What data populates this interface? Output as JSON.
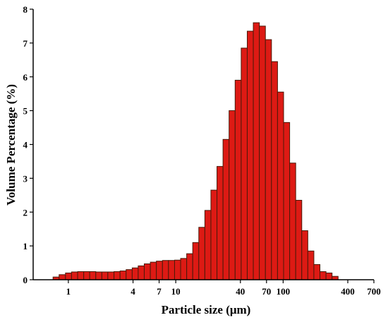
{
  "chart_data": {
    "type": "bar",
    "xlabel": "Particle size (μm)",
    "ylabel": "Volume Percentage (%)",
    "x_scale": "log",
    "xlim": [
      0.47,
      700
    ],
    "ylim": [
      0,
      8
    ],
    "x_ticks": [
      {
        "value": 1,
        "label": "1"
      },
      {
        "value": 4,
        "label": "4"
      },
      {
        "value": 7,
        "label": "7"
      },
      {
        "value": 10,
        "label": "10"
      },
      {
        "value": 40,
        "label": "40"
      },
      {
        "value": 70,
        "label": "70"
      },
      {
        "value": 100,
        "label": "100"
      },
      {
        "value": 400,
        "label": "400"
      },
      {
        "value": 700,
        "label": "700"
      }
    ],
    "y_ticks": [
      {
        "value": 0,
        "label": "0"
      },
      {
        "value": 1,
        "label": "1"
      },
      {
        "value": 2,
        "label": "2"
      },
      {
        "value": 3,
        "label": "3"
      },
      {
        "value": 4,
        "label": "4"
      },
      {
        "value": 5,
        "label": "5"
      },
      {
        "value": 6,
        "label": "6"
      },
      {
        "value": 7,
        "label": "7"
      },
      {
        "value": 8,
        "label": "8"
      }
    ],
    "grid": false,
    "legend": "none",
    "bar_color": "#dd1a14",
    "bar_edge_color": "#4a1a0a",
    "bin_low_edges": [
      0.72,
      0.82,
      0.94,
      1.07,
      1.22,
      1.39,
      1.58,
      1.8,
      2.05,
      2.33,
      2.66,
      3.03,
      3.45,
      3.93,
      4.47,
      5.09,
      5.8,
      6.6,
      7.52,
      8.56,
      9.75,
      11.1,
      12.64,
      14.39,
      16.39,
      18.66,
      21.25,
      24.2,
      27.55,
      31.37,
      35.72,
      40.68,
      46.32,
      52.74,
      60.06,
      68.39,
      77.87,
      88.67,
      100.97,
      114.98,
      130.92,
      149.08,
      169.76,
      193.31,
      220.12,
      250.66,
      285.42
    ],
    "bin_high_edges": [
      0.82,
      0.94,
      1.07,
      1.22,
      1.39,
      1.58,
      1.8,
      2.05,
      2.33,
      2.66,
      3.03,
      3.45,
      3.93,
      4.47,
      5.09,
      5.8,
      6.6,
      7.52,
      8.56,
      9.75,
      11.1,
      12.64,
      14.39,
      16.39,
      18.66,
      21.25,
      24.2,
      27.55,
      31.37,
      35.72,
      40.68,
      46.32,
      52.74,
      60.06,
      68.39,
      77.87,
      88.67,
      100.97,
      114.98,
      130.92,
      149.08,
      169.76,
      193.31,
      220.12,
      250.66,
      285.42,
      325.0
    ],
    "values": [
      0.08,
      0.15,
      0.2,
      0.23,
      0.24,
      0.24,
      0.24,
      0.23,
      0.23,
      0.23,
      0.24,
      0.26,
      0.3,
      0.35,
      0.41,
      0.47,
      0.52,
      0.55,
      0.57,
      0.57,
      0.58,
      0.63,
      0.77,
      1.1,
      1.55,
      2.05,
      2.65,
      3.35,
      4.15,
      5.0,
      5.9,
      6.85,
      7.35,
      7.6,
      7.5,
      7.1,
      6.45,
      5.55,
      4.65,
      3.45,
      2.35,
      1.45,
      0.85,
      0.45,
      0.24,
      0.2,
      0.1
    ]
  }
}
